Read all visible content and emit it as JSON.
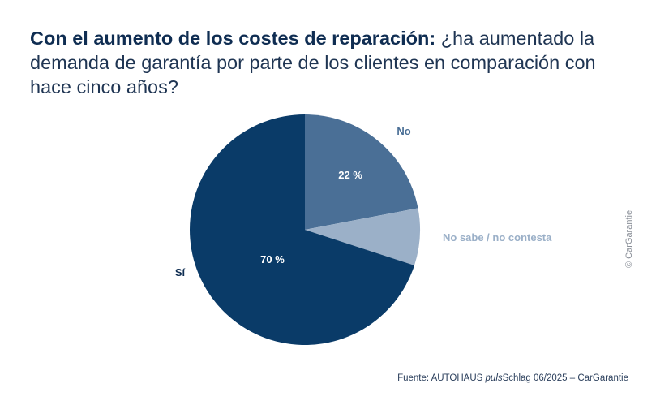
{
  "title": {
    "bold": "Con el aumento de los costes de reparación:",
    "rest": "¿ha aumentado la demanda de garantía por parte de los clientes en comparación con hace cinco años?"
  },
  "copyright": "© CarGarantie",
  "source": {
    "prefix": "Fuente: AUTOHAUS ",
    "italic": "puls",
    "suffix": "Schlag 06/2025 – CarGarantie"
  },
  "colors": {
    "si": "#0a3b68",
    "no": "#4a6f96",
    "no_sabe": "#9bb0c8",
    "label_dark": "#0f2d52",
    "label_light": "#9bb0c8"
  },
  "chart_data": {
    "type": "pie",
    "start_angle_deg": 0,
    "direction": "clockwise",
    "slices": [
      {
        "label": "No",
        "value": 22,
        "value_label": "22 %",
        "color": "#4a6f96",
        "label_color": "#4a6f96"
      },
      {
        "label": "No sabe / no contesta",
        "value": 8,
        "value_label": "",
        "color": "#9bb0c8",
        "label_color": "#9bb0c8"
      },
      {
        "label": "Sí",
        "value": 70,
        "value_label": "70 %",
        "color": "#0a3b68",
        "label_color": "#0f2d52"
      }
    ]
  }
}
